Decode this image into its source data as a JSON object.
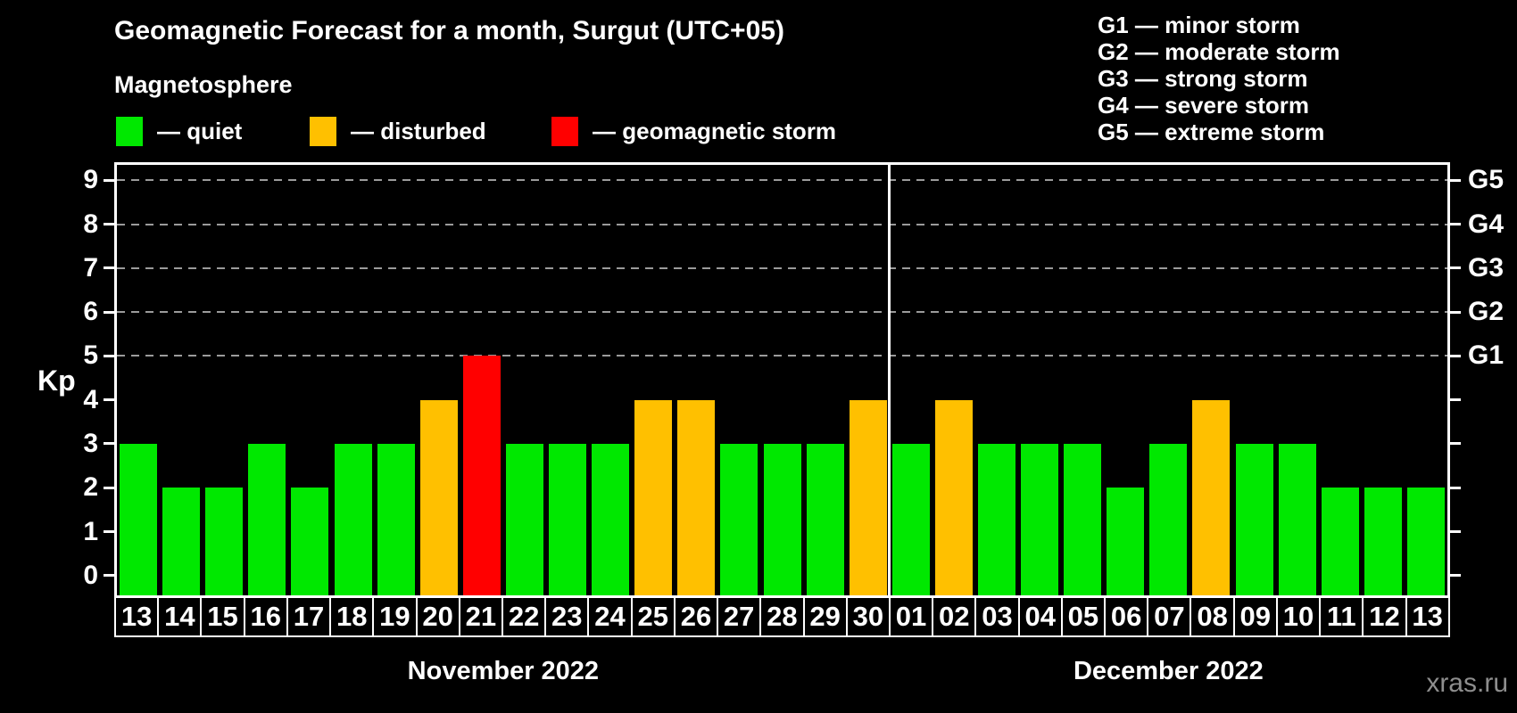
{
  "title": "Geomagnetic Forecast for a month, Surgut (UTC+05)",
  "subtitle": "Magnetosphere",
  "watermark": "xras.ru",
  "colors": {
    "quiet": "#00E800",
    "disturbed": "#FFC000",
    "storm": "#FF0000",
    "grid": "#9B9B9B",
    "frame": "#FFFFFF",
    "background": "#000000",
    "watermark_gray": "#8E8E8E"
  },
  "legend": {
    "items": [
      {
        "key": "quiet",
        "label": "— quiet"
      },
      {
        "key": "disturbed",
        "label": "— disturbed"
      },
      {
        "key": "storm",
        "label": "— geomagnetic storm"
      }
    ]
  },
  "g_scale_legend": [
    {
      "code": "G1",
      "label": "— minor storm"
    },
    {
      "code": "G2",
      "label": "— moderate storm"
    },
    {
      "code": "G3",
      "label": "— strong storm"
    },
    {
      "code": "G4",
      "label": "— severe storm"
    },
    {
      "code": "G5",
      "label": "— extreme storm"
    }
  ],
  "chart_data": {
    "type": "bar",
    "title": "Geomagnetic Forecast for a month, Surgut (UTC+05)",
    "ylabel": "Kp",
    "ylim": [
      -0.45,
      9.35
    ],
    "yticks": [
      0,
      1,
      2,
      3,
      4,
      5,
      6,
      7,
      8,
      9
    ],
    "grid_values": [
      5,
      6,
      7,
      8,
      9
    ],
    "right_axis": [
      {
        "label": "G1",
        "value": 5
      },
      {
        "label": "G2",
        "value": 6
      },
      {
        "label": "G3",
        "value": 7
      },
      {
        "label": "G4",
        "value": 8
      },
      {
        "label": "G5",
        "value": 9
      }
    ],
    "months": [
      {
        "label": "November 2022",
        "days": [
          "13",
          "14",
          "15",
          "16",
          "17",
          "18",
          "19",
          "20",
          "21",
          "22",
          "23",
          "24",
          "25",
          "26",
          "27",
          "28",
          "29",
          "30"
        ],
        "values": [
          3,
          2,
          2,
          3,
          2,
          3,
          3,
          4,
          5,
          3,
          3,
          3,
          4,
          4,
          3,
          3,
          3,
          4
        ],
        "status": [
          "quiet",
          "quiet",
          "quiet",
          "quiet",
          "quiet",
          "quiet",
          "quiet",
          "disturbed",
          "storm",
          "quiet",
          "quiet",
          "quiet",
          "disturbed",
          "disturbed",
          "quiet",
          "quiet",
          "quiet",
          "disturbed"
        ]
      },
      {
        "label": "December 2022",
        "days": [
          "01",
          "02",
          "03",
          "04",
          "05",
          "06",
          "07",
          "08",
          "09",
          "10",
          "11",
          "12",
          "13"
        ],
        "values": [
          3,
          4,
          3,
          3,
          3,
          2,
          3,
          4,
          3,
          3,
          2,
          2,
          2
        ],
        "status": [
          "quiet",
          "disturbed",
          "quiet",
          "quiet",
          "quiet",
          "quiet",
          "quiet",
          "disturbed",
          "quiet",
          "quiet",
          "quiet",
          "quiet",
          "quiet"
        ]
      }
    ]
  }
}
